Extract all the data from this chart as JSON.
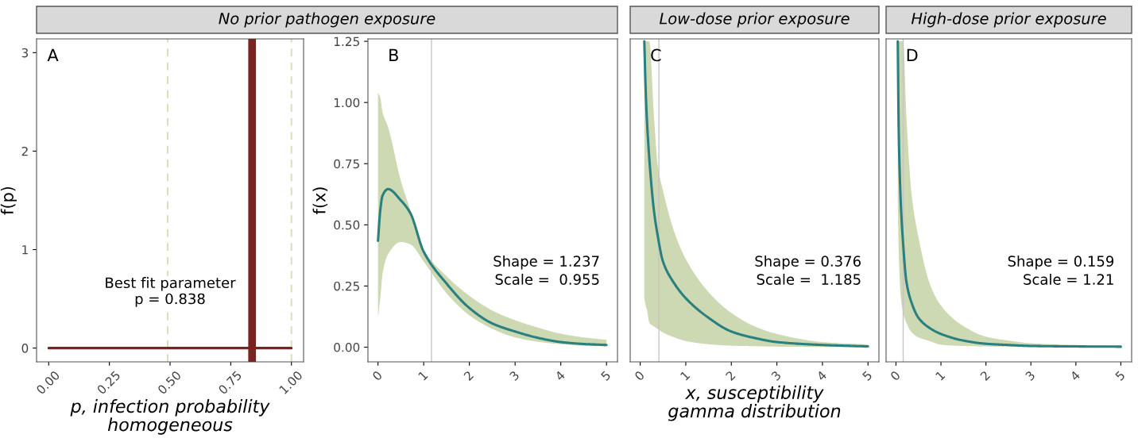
{
  "chart_data": [
    {
      "type": "line",
      "title": "No prior pathogen exposure",
      "xlabel": "p, infection probability\nhomogeneous",
      "ylabel": "f(p)",
      "xlim": [
        -0.05,
        1.05
      ],
      "ylim": [
        -0.14,
        3.14
      ],
      "xticks": [
        {
          "value": 0,
          "label": "0.00"
        },
        0.25,
        {
          "value": 0.5,
          "label": "0.50"
        },
        0.75,
        {
          "value": 1,
          "label": "1.00"
        }
      ],
      "yticks": [
        0,
        1,
        2,
        3
      ],
      "grid": false,
      "series": [
        {
          "color": "#7a2323",
          "x": [
            0,
            1
          ],
          "values": [
            0,
            0
          ]
        }
      ],
      "ref_lines": [
        {
          "axis": "x",
          "value": 0.838,
          "color": "#7a2323",
          "line_style": "solid"
        },
        {
          "axis": "x",
          "value": 0.49,
          "color": "#d4e0b8",
          "line_style": "dashed"
        },
        {
          "axis": "x",
          "value": 1.0,
          "color": "#d4e0b8",
          "line_style": "dashed"
        }
      ],
      "annotations": [
        "A",
        "Best fit parameter\np = 0.838"
      ]
    },
    {
      "type": "line",
      "ylabel": "f(x)",
      "xlim": [
        -0.22,
        5.24
      ],
      "ylim": [
        -0.06,
        1.26
      ],
      "xticks": [
        0,
        1,
        2,
        3,
        4,
        5
      ],
      "yticks": [
        {
          "value": 0,
          "label": "0.00"
        },
        0.25,
        {
          "value": 0.5,
          "label": "0.50"
        },
        0.75,
        {
          "value": 1,
          "label": "1.00"
        },
        1.25
      ],
      "grid": false,
      "series": [
        {
          "color": "#2a7f7f",
          "x": [
            0,
            0.05,
            0.1,
            0.22,
            0.5,
            0.71,
            1,
            1.5,
            2,
            2.5,
            3,
            3.5,
            4,
            4.5,
            5
          ],
          "values": [
            0.435,
            0.56,
            0.62,
            0.646,
            0.6,
            0.547,
            0.39,
            0.26,
            0.16,
            0.097,
            0.064,
            0.038,
            0.021,
            0.013,
            0.009
          ],
          "lower": [
            0.12,
            0.2,
            0.3,
            0.38,
            0.43,
            0.42,
            0.35,
            0.22,
            0.13,
            0.075,
            0.04,
            0.022,
            0.012,
            0.006,
            0.003
          ],
          "upper": [
            1.04,
            1.02,
            0.96,
            0.9,
            0.68,
            0.56,
            0.4,
            0.29,
            0.21,
            0.15,
            0.11,
            0.08,
            0.055,
            0.04,
            0.03
          ]
        }
      ],
      "ref_lines": [
        {
          "axis": "x",
          "value": 1.17,
          "color": "#c8c4c4",
          "line_style": "solid"
        }
      ],
      "annotations": [
        "B",
        "Shape = 1.237\nScale =  0.955"
      ]
    },
    {
      "type": "line",
      "title": "Low-dose prior exposure",
      "xlabel": "x, susceptibility\ngamma distribution",
      "xlim": [
        -0.22,
        5.24
      ],
      "ylim": [
        -0.06,
        1.26
      ],
      "xticks": [
        0,
        1,
        2,
        3,
        4,
        5
      ],
      "tick_labels": "x",
      "grid": false,
      "series": [
        {
          "color": "#2a7f7f",
          "x": [
            0.09,
            0.12,
            0.15,
            0.2,
            0.3,
            0.38,
            0.5,
            0.75,
            1,
            1.5,
            2,
            2.5,
            3,
            4,
            5
          ],
          "values": [
            1.25,
            1.05,
            0.92,
            0.77,
            0.56,
            0.46,
            0.35,
            0.26,
            0.2,
            0.12,
            0.064,
            0.038,
            0.021,
            0.009,
            0.003
          ],
          "lower": [
            0.2,
            0.17,
            0.15,
            0.1,
            0.085,
            0.075,
            0.06,
            0.04,
            0.025,
            0.012,
            0.006,
            0.004,
            0.002,
            0.001,
            0.001
          ],
          "upper": [
            1.25,
            1.25,
            1.25,
            1.25,
            0.95,
            0.75,
            0.64,
            0.47,
            0.36,
            0.225,
            0.14,
            0.086,
            0.054,
            0.021,
            0.011
          ]
        }
      ],
      "ref_lines": [
        {
          "axis": "x",
          "value": 0.41,
          "color": "#c8c4c4",
          "line_style": "solid"
        }
      ],
      "annotations": [
        "C",
        "Shape = 0.376\nScale =  1.185"
      ]
    },
    {
      "type": "line",
      "title": "High-dose prior exposure",
      "xlim": [
        -0.22,
        5.24
      ],
      "ylim": [
        -0.06,
        1.26
      ],
      "xticks": [
        0,
        1,
        2,
        3,
        4,
        5
      ],
      "tick_labels": "x",
      "grid": false,
      "series": [
        {
          "color": "#2a7f7f",
          "x": [
            0.04,
            0.06,
            0.1,
            0.16,
            0.23,
            0.35,
            0.5,
            0.75,
            1,
            1.5,
            2,
            2.5,
            3,
            4,
            5
          ],
          "values": [
            1.25,
            0.9,
            0.62,
            0.42,
            0.27,
            0.18,
            0.12,
            0.078,
            0.054,
            0.027,
            0.014,
            0.009,
            0.005,
            0.003,
            0.002
          ],
          "lower": [
            0.6,
            0.4,
            0.22,
            0.14,
            0.1,
            0.06,
            0.04,
            0.025,
            0.01,
            0.005,
            0.003,
            0.002,
            0.001,
            0.001,
            0.001
          ],
          "upper": [
            1.25,
            1.25,
            1.25,
            1.25,
            0.95,
            0.62,
            0.45,
            0.26,
            0.17,
            0.086,
            0.043,
            0.027,
            0.016,
            0.009,
            0.005
          ]
        }
      ],
      "ref_lines": [
        {
          "axis": "x",
          "value": 0.16,
          "color": "#c8c4c4",
          "line_style": "solid"
        }
      ],
      "annotations": [
        "D",
        "Shape = 0.159\nScale = 1.21"
      ]
    }
  ]
}
